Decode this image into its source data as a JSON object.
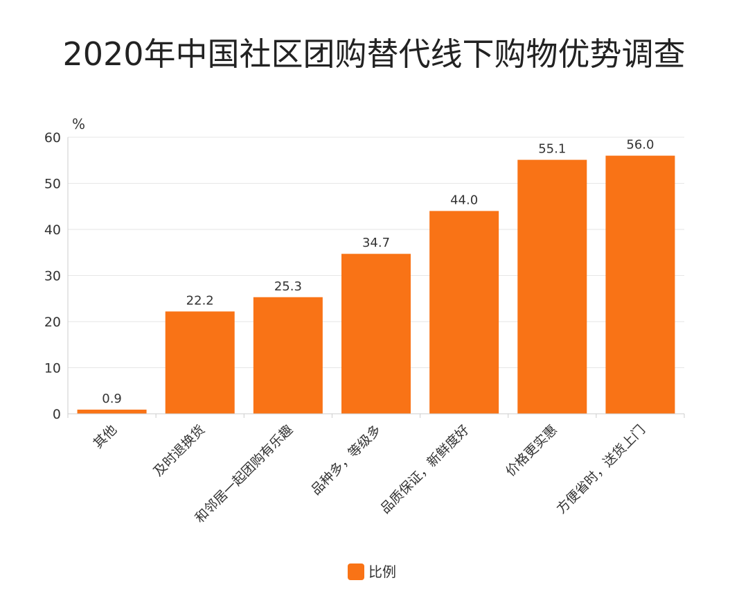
{
  "chart_data": {
    "type": "bar",
    "title": "2020年中国社区团购替代线下购物优势调查",
    "yunit": "%",
    "xlabel": "",
    "ylabel": "",
    "ylim": [
      0,
      60
    ],
    "yticks": [
      0,
      10,
      20,
      30,
      40,
      50,
      60
    ],
    "grid": true,
    "legend_position": "bottom-center",
    "categories": [
      "其他",
      "及时退换货",
      "和邻居一起团购有乐趣",
      "品种多，等级多",
      "品质保证，新鲜度好",
      "价格更实惠",
      "方便省时，送货上门"
    ],
    "series": [
      {
        "name": "比例",
        "values": [
          0.9,
          22.2,
          25.3,
          34.7,
          44.0,
          55.1,
          56.0
        ],
        "labels": [
          "0.9",
          "22.2",
          "25.3",
          "34.7",
          "44.0",
          "55.1",
          "56.0"
        ],
        "color": "#F97316"
      }
    ]
  }
}
